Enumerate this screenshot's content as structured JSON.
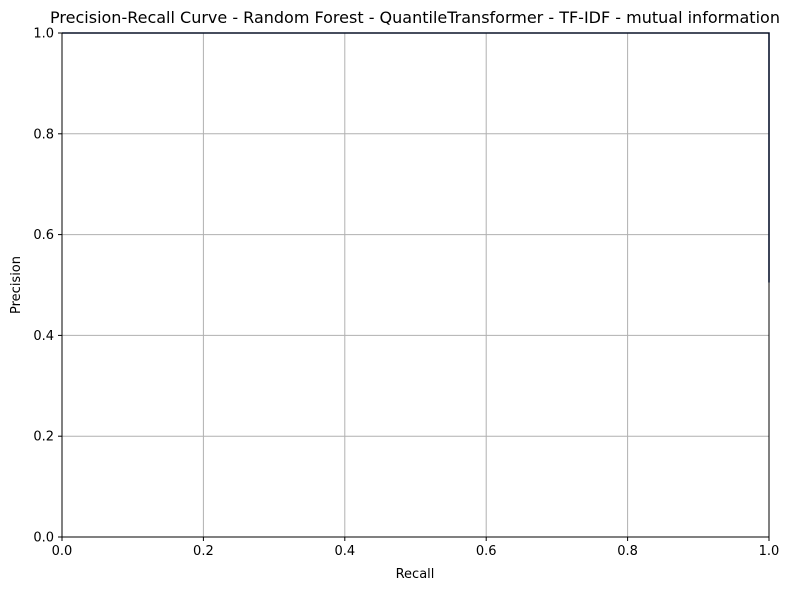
{
  "chart_data": {
    "type": "line",
    "title": "Precision-Recall Curve - Random Forest - QuantileTransformer - TF-IDF - mutual information",
    "xlabel": "Recall",
    "ylabel": "Precision",
    "xlim": [
      0.0,
      1.0
    ],
    "ylim": [
      0.0,
      1.0
    ],
    "xticks": [
      0.0,
      0.2,
      0.4,
      0.6,
      0.8,
      1.0
    ],
    "yticks": [
      0.0,
      0.2,
      0.4,
      0.6,
      0.8,
      1.0
    ],
    "xtick_labels": [
      "0.0",
      "0.2",
      "0.4",
      "0.6",
      "0.8",
      "1.0"
    ],
    "ytick_labels": [
      "0.0",
      "0.2",
      "0.4",
      "0.6",
      "0.8",
      "1.0"
    ],
    "grid": true,
    "colors": {
      "series": "#1f3a7a",
      "grid": "#b0b0b0",
      "axes": "#000000"
    },
    "series": [
      {
        "x": [
          0.0,
          1.0,
          1.0
        ],
        "y": [
          1.0,
          1.0,
          0.505
        ]
      }
    ]
  }
}
